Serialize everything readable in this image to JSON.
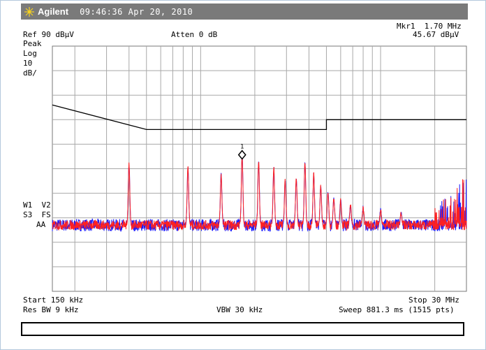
{
  "header": {
    "brand": "Agilent",
    "timestamp": "09:46:36  Apr 20, 2010"
  },
  "marker": {
    "line1": "Mkr1  1.70 MHz",
    "line2": "45.67 dBµV",
    "label": "1"
  },
  "settings": {
    "ref_level": "Ref 90 dBµV",
    "attenuation": "Atten 0 dB",
    "detector": "Peak",
    "scale_type": "Log",
    "scale_value": "10",
    "scale_unit": "dB/",
    "traces_line1": "W1  V2",
    "traces_line2": "S3  FS",
    "traces_line3": "AA"
  },
  "footer": {
    "start": "Start 150 kHz",
    "stop": "Stop 30 MHz",
    "res_bw": "Res BW 9 kHz",
    "vbw": "VBW 30 kHz",
    "sweep": "Sweep 881.3 ms (1515 pts)"
  },
  "colors": {
    "trace_red": "#ff2020",
    "trace_blue": "#1a1aff",
    "titlebar": "#7a7a7a",
    "grid": "#a8a8a8"
  },
  "chart_data": {
    "type": "line",
    "x_scale": "log",
    "x_range_hz": [
      150000,
      30000000
    ],
    "y_range_dbuv": [
      -10,
      90
    ],
    "y_divisions": 10,
    "limit_line": [
      {
        "x_hz": 150000,
        "y_dbuv": 66
      },
      {
        "x_hz": 500000,
        "y_dbuv": 56
      },
      {
        "x_hz": 5000000,
        "y_dbuv": 56
      },
      {
        "x_hz": 5000000,
        "y_dbuv": 60
      },
      {
        "x_hz": 30000000,
        "y_dbuv": 60
      }
    ],
    "noise_floor_dbuv": 17,
    "peaks": [
      {
        "x_hz": 400000,
        "y_dbuv": 42
      },
      {
        "x_hz": 850000,
        "y_dbuv": 41
      },
      {
        "x_hz": 1300000,
        "y_dbuv": 38
      },
      {
        "x_hz": 1700000,
        "y_dbuv": 45.67
      },
      {
        "x_hz": 2100000,
        "y_dbuv": 43
      },
      {
        "x_hz": 2550000,
        "y_dbuv": 40
      },
      {
        "x_hz": 2950000,
        "y_dbuv": 35
      },
      {
        "x_hz": 3400000,
        "y_dbuv": 36
      },
      {
        "x_hz": 3800000,
        "y_dbuv": 42
      },
      {
        "x_hz": 4250000,
        "y_dbuv": 38
      },
      {
        "x_hz": 4650000,
        "y_dbuv": 33
      },
      {
        "x_hz": 5100000,
        "y_dbuv": 30
      },
      {
        "x_hz": 5500000,
        "y_dbuv": 28
      },
      {
        "x_hz": 6000000,
        "y_dbuv": 27
      },
      {
        "x_hz": 6800000,
        "y_dbuv": 25
      },
      {
        "x_hz": 8000000,
        "y_dbuv": 24
      },
      {
        "x_hz": 10000000,
        "y_dbuv": 23
      },
      {
        "x_hz": 13000000,
        "y_dbuv": 22
      }
    ],
    "high_freq_rise": [
      {
        "x_hz": 20000000,
        "y_dbuv": 24
      },
      {
        "x_hz": 26000000,
        "y_dbuv": 31
      },
      {
        "x_hz": 29000000,
        "y_dbuv": 38
      }
    ],
    "marker": {
      "x_hz": 1700000,
      "y_dbuv": 45.67
    }
  }
}
